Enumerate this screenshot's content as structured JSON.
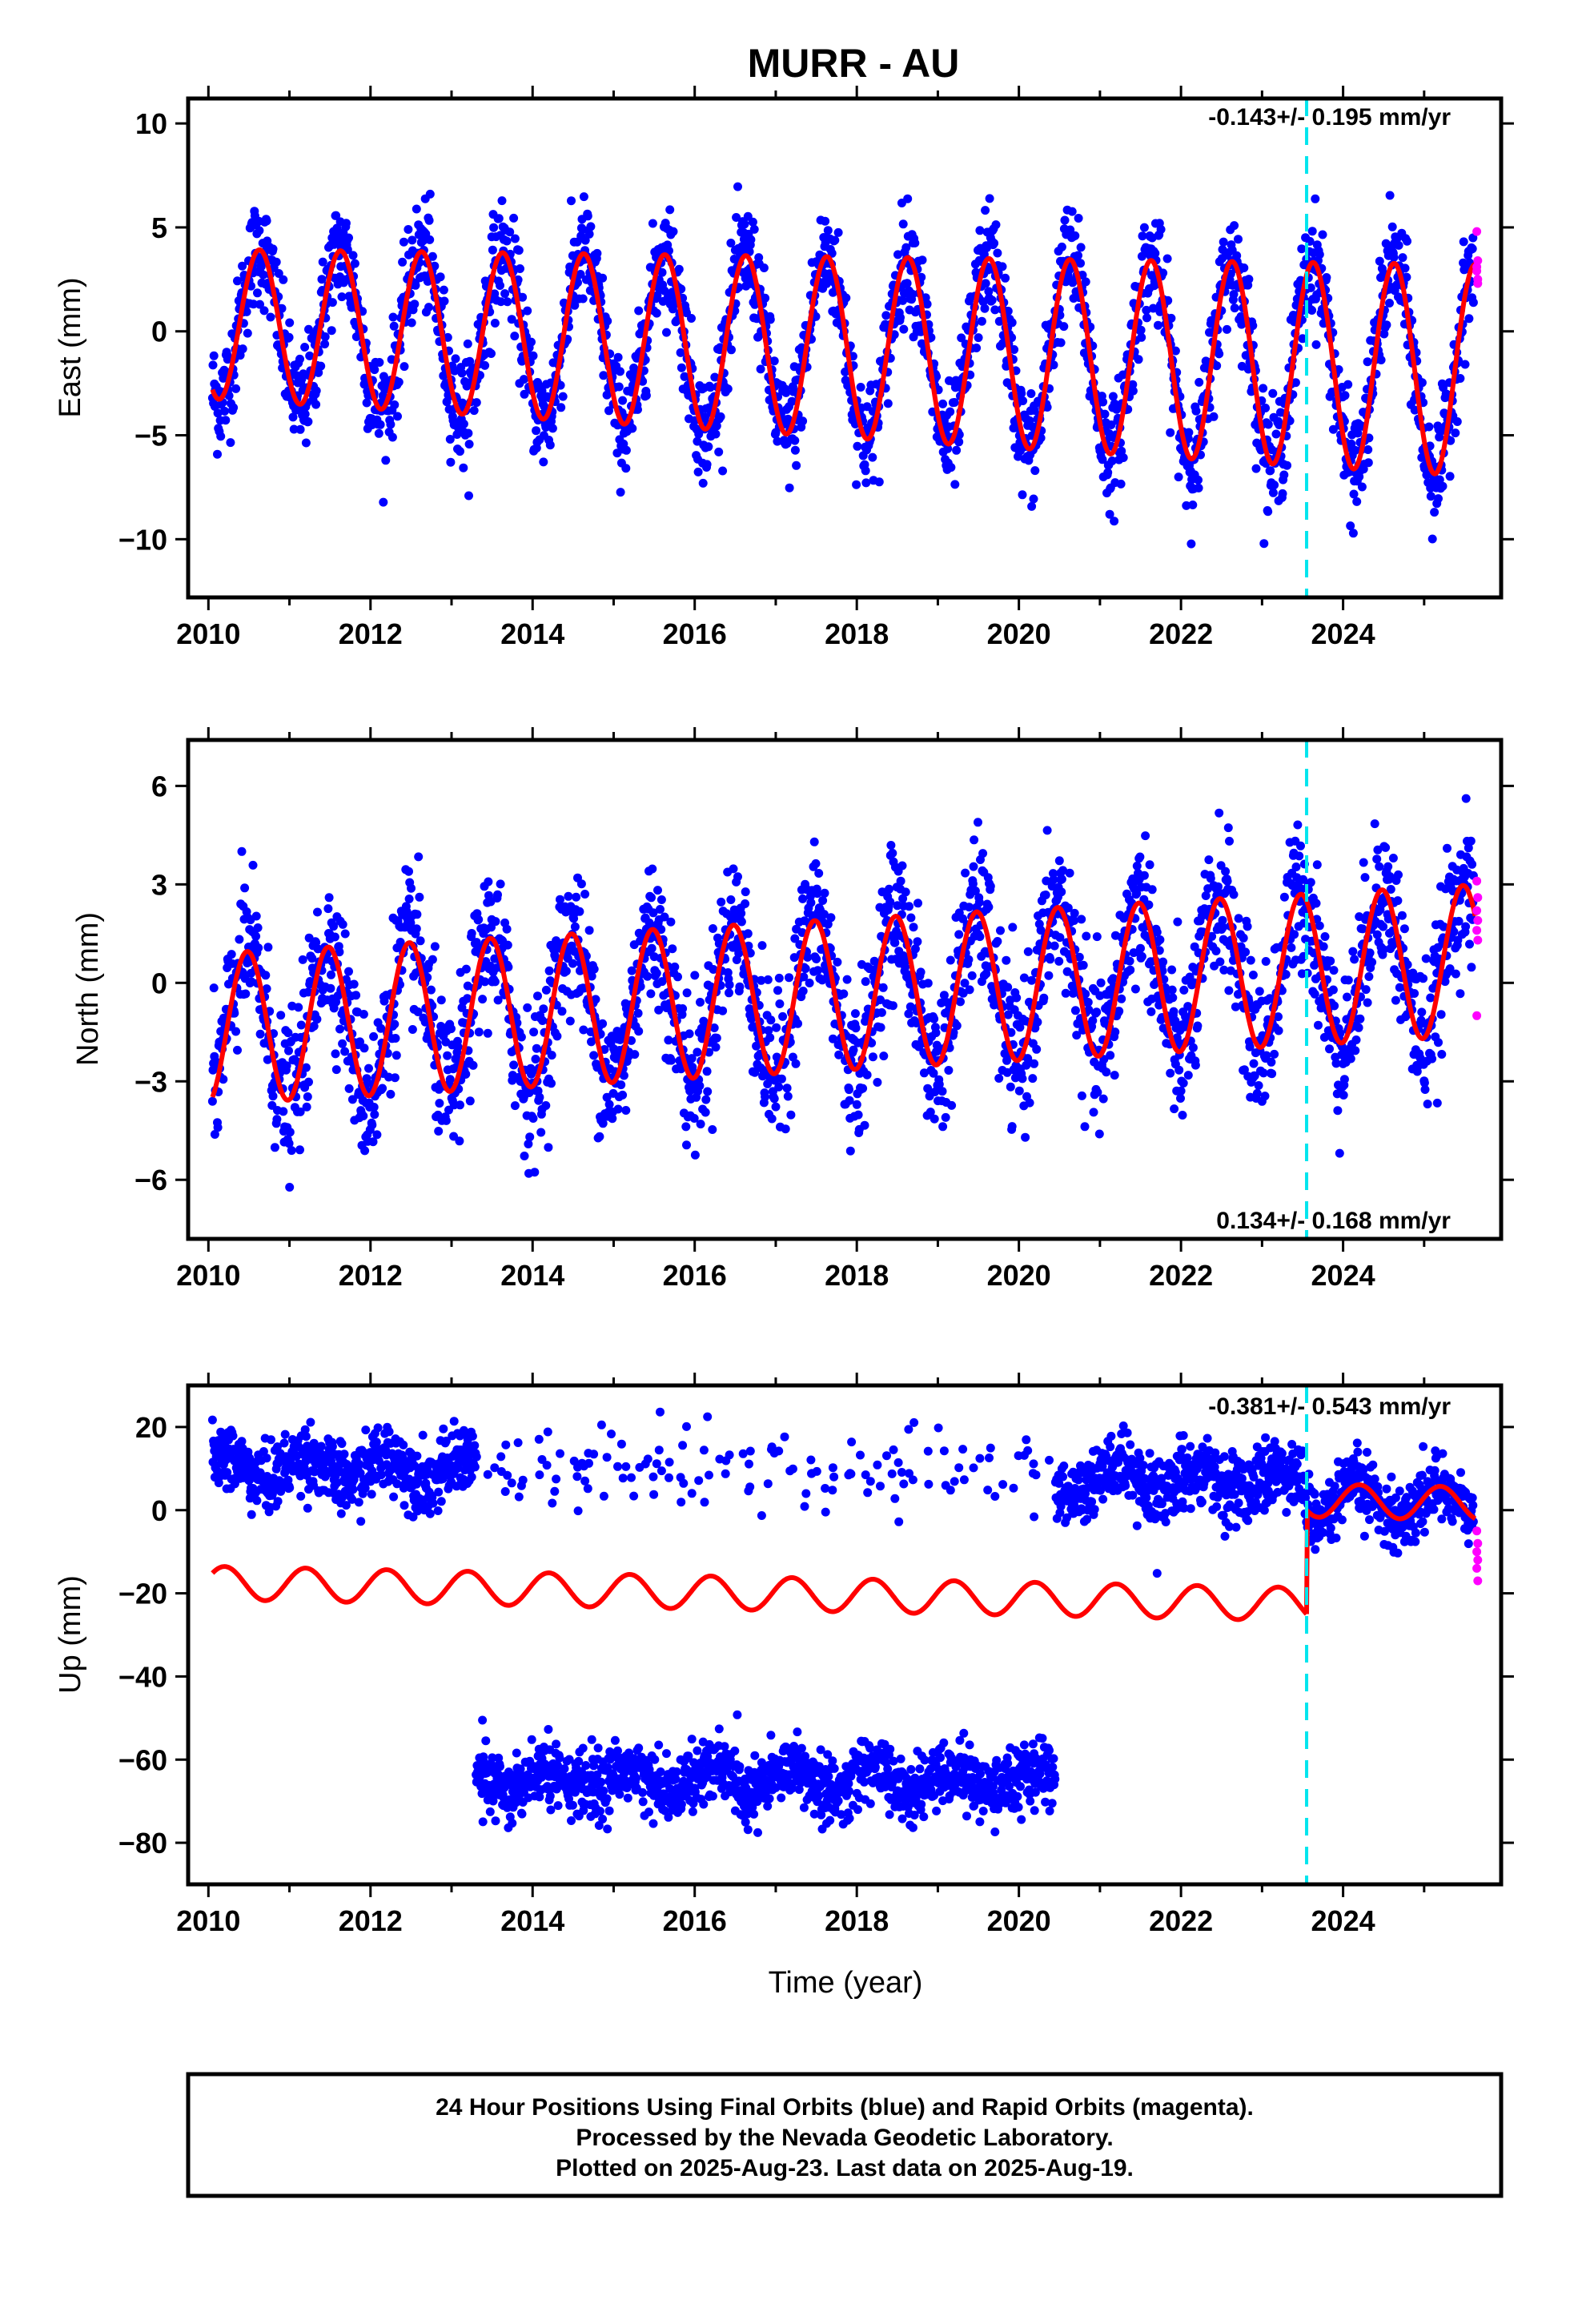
{
  "title": "MURR - AU",
  "xlabel": "Time (year)",
  "colors": {
    "final_orbits": "#0000ff",
    "rapid_orbits": "#ff00ff",
    "model": "#ff0000",
    "event_marker": "#00e5ee"
  },
  "footer": {
    "line1": "24 Hour Positions Using Final Orbits (blue) and Rapid Orbits (magenta).",
    "line2": "Processed by the Nevada Geodetic Laboratory.",
    "line3": "Plotted on 2025-Aug-23. Last data on 2025-Aug-19."
  },
  "chart_data": [
    {
      "type": "scatter",
      "component": "east",
      "ylabel": "East (mm)",
      "rate_label": "-0.143+/- 0.195 mm/yr",
      "xlim": [
        2009.75,
        2025.95
      ],
      "ylim": [
        -12.8,
        11.2
      ],
      "xticks": [
        2010,
        2012,
        2014,
        2016,
        2018,
        2020,
        2022,
        2024
      ],
      "yticks": [
        10,
        5,
        0,
        -5,
        -10
      ],
      "event_marker_x": 2023.55,
      "data_start": 2010.05,
      "data_end": 2025.63,
      "model": {
        "offset": 0.35,
        "trend": -0.143,
        "annual_amplitude": [
          3.6,
          5.1
        ],
        "annual_phase_peak": 0.63,
        "step_at_event": 0
      },
      "scatter_spread": 1.3,
      "rapid_points": [
        4.8,
        3.4,
        2.9,
        2.5,
        3.1,
        2.3
      ]
    },
    {
      "type": "scatter",
      "component": "north",
      "ylabel": "North (mm)",
      "rate_label": "0.134+/- 0.168 mm/yr",
      "xlim": [
        2009.75,
        2025.95
      ],
      "ylim": [
        -7.8,
        7.4
      ],
      "xticks": [
        2010,
        2012,
        2014,
        2016,
        2018,
        2020,
        2022,
        2024
      ],
      "yticks": [
        6,
        3,
        0,
        -3,
        -6
      ],
      "event_marker_x": 2023.55,
      "data_start": 2010.05,
      "data_end": 2025.63,
      "model": {
        "offset": -1.4,
        "trend": 0.134,
        "annual_amplitude": [
          2.3,
          2.3
        ],
        "annual_phase_peak": 0.48,
        "step_at_event": 0
      },
      "scatter_spread": 1.1,
      "rapid_points": [
        3.1,
        2.6,
        2.2,
        1.9,
        1.6,
        1.3,
        -1.0
      ]
    },
    {
      "type": "scatter",
      "component": "up",
      "ylabel": "Up (mm)",
      "rate_label": "-0.381+/- 0.543 mm/yr",
      "xlim": [
        2009.75,
        2025.95
      ],
      "ylim": [
        -90,
        30
      ],
      "xticks": [
        2010,
        2012,
        2014,
        2016,
        2018,
        2020,
        2022,
        2024
      ],
      "yticks": [
        20,
        0,
        -20,
        -40,
        -60,
        -80
      ],
      "event_marker_x": 2023.55,
      "data_start": 2010.05,
      "data_end": 2025.63,
      "model": {
        "offset": -17.5,
        "trend": -0.381,
        "annual_amplitude": [
          4.0,
          4.0
        ],
        "annual_phase_peak": 0.2,
        "step_at_event": 25
      },
      "cluster_upper_level": 10,
      "cluster_lower_level": -65,
      "cluster_lower_range": [
        2013.3,
        2020.45
      ],
      "scatter_spread": 4.0,
      "rapid_points": [
        -5.0,
        -8.0,
        -10.0,
        -12.0,
        -14.0,
        -17.0
      ]
    }
  ]
}
